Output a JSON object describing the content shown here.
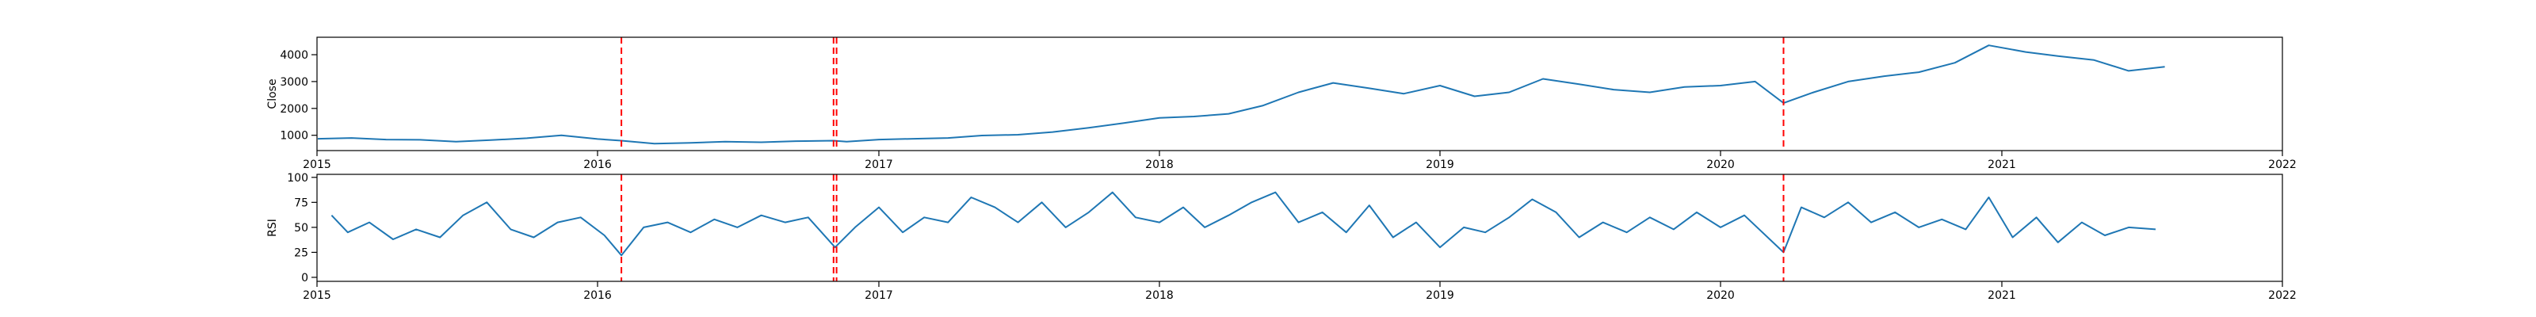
{
  "chart_data": [
    {
      "type": "line",
      "title": "",
      "xlabel": "",
      "ylabel": "Close",
      "x_ticks": [
        "2015",
        "2016",
        "2017",
        "2018",
        "2019",
        "2020",
        "2021",
        "2022"
      ],
      "xlim": [
        "2015-01-01",
        "2022-01-01"
      ],
      "y_ticks": [
        1000,
        2000,
        3000,
        4000
      ],
      "ylim": [
        430,
        4650
      ],
      "grid": false,
      "series": [
        {
          "color": "#1f77b4",
          "x": [
            "2015-01-02",
            "2015-02-15",
            "2015-04-01",
            "2015-05-15",
            "2015-07-01",
            "2015-08-15",
            "2015-10-01",
            "2015-11-15",
            "2016-01-01",
            "2016-02-01",
            "2016-03-15",
            "2016-05-01",
            "2016-06-15",
            "2016-08-01",
            "2016-09-15",
            "2016-11-03",
            "2016-11-20",
            "2017-01-01",
            "2017-02-15",
            "2017-04-01",
            "2017-05-15",
            "2017-07-01",
            "2017-08-15",
            "2017-10-01",
            "2017-11-15",
            "2018-01-01",
            "2018-02-15",
            "2018-04-01",
            "2018-05-15",
            "2018-07-01",
            "2018-08-15",
            "2018-10-01",
            "2018-11-15",
            "2019-01-01",
            "2019-02-15",
            "2019-04-01",
            "2019-05-15",
            "2019-07-01",
            "2019-08-15",
            "2019-10-01",
            "2019-11-15",
            "2020-01-01",
            "2020-02-15",
            "2020-03-23",
            "2020-05-01",
            "2020-06-15",
            "2020-08-01",
            "2020-09-15",
            "2020-11-01",
            "2020-12-15",
            "2021-02-01",
            "2021-03-15",
            "2021-05-01",
            "2021-06-15",
            "2021-08-01"
          ],
          "y": [
            870,
            900,
            840,
            830,
            760,
            820,
            890,
            1000,
            860,
            800,
            690,
            720,
            760,
            740,
            780,
            800,
            760,
            840,
            870,
            900,
            990,
            1020,
            1120,
            1280,
            1450,
            1650,
            1700,
            1800,
            2100,
            2600,
            2950,
            2750,
            2550,
            2850,
            2450,
            2600,
            3100,
            2900,
            2700,
            2600,
            2800,
            2850,
            3000,
            2200,
            2600,
            3000,
            3200,
            3350,
            3700,
            4350,
            4100,
            3950,
            3800,
            3400,
            3550
          ]
        }
      ],
      "annotations": [
        {
          "type": "vline",
          "x": "2016-02-01",
          "style": "dashed",
          "color": "#ff0000"
        },
        {
          "type": "vline",
          "x": "2016-11-03",
          "style": "dashed",
          "color": "#ff0000"
        },
        {
          "type": "vline",
          "x": "2016-11-07",
          "style": "dashed",
          "color": "#ff0000"
        },
        {
          "type": "vline",
          "x": "2020-03-23",
          "style": "dashed",
          "color": "#ff0000"
        }
      ]
    },
    {
      "type": "line",
      "title": "",
      "xlabel": "",
      "ylabel": "RSI",
      "x_ticks": [
        "2015",
        "2016",
        "2017",
        "2018",
        "2019",
        "2020",
        "2021",
        "2022"
      ],
      "xlim": [
        "2015-01-01",
        "2022-01-01"
      ],
      "y_ticks": [
        0,
        25,
        50,
        75,
        100
      ],
      "ylim": [
        -4,
        103
      ],
      "grid": false,
      "series": [
        {
          "color": "#1f77b4",
          "x": [
            "2015-01-20",
            "2015-02-10",
            "2015-03-10",
            "2015-04-10",
            "2015-05-10",
            "2015-06-10",
            "2015-07-10",
            "2015-08-10",
            "2015-09-10",
            "2015-10-10",
            "2015-11-10",
            "2015-12-10",
            "2016-01-10",
            "2016-02-01",
            "2016-03-01",
            "2016-04-01",
            "2016-05-01",
            "2016-06-01",
            "2016-07-01",
            "2016-08-01",
            "2016-09-01",
            "2016-10-01",
            "2016-11-05",
            "2016-12-01",
            "2017-01-01",
            "2017-02-01",
            "2017-03-01",
            "2017-04-01",
            "2017-05-01",
            "2017-06-01",
            "2017-07-01",
            "2017-08-01",
            "2017-09-01",
            "2017-10-01",
            "2017-11-01",
            "2017-12-01",
            "2018-01-01",
            "2018-02-01",
            "2018-03-01",
            "2018-04-01",
            "2018-05-01",
            "2018-06-01",
            "2018-07-01",
            "2018-08-01",
            "2018-09-01",
            "2018-10-01",
            "2018-11-01",
            "2018-12-01",
            "2019-01-01",
            "2019-02-01",
            "2019-03-01",
            "2019-04-01",
            "2019-05-01",
            "2019-06-01",
            "2019-07-01",
            "2019-08-01",
            "2019-09-01",
            "2019-10-01",
            "2019-11-01",
            "2019-12-01",
            "2020-01-01",
            "2020-02-01",
            "2020-03-23",
            "2020-04-15",
            "2020-05-15",
            "2020-06-15",
            "2020-07-15",
            "2020-08-15",
            "2020-09-15",
            "2020-10-15",
            "2020-11-15",
            "2020-12-15",
            "2021-01-15",
            "2021-02-15",
            "2021-03-15",
            "2021-04-15",
            "2021-05-15",
            "2021-06-15",
            "2021-07-20"
          ],
          "y": [
            62,
            45,
            55,
            38,
            48,
            40,
            62,
            75,
            48,
            40,
            55,
            60,
            42,
            22,
            50,
            55,
            45,
            58,
            50,
            62,
            55,
            60,
            30,
            50,
            70,
            45,
            60,
            55,
            80,
            70,
            55,
            75,
            50,
            65,
            85,
            60,
            55,
            70,
            50,
            62,
            75,
            85,
            55,
            65,
            45,
            72,
            40,
            55,
            30,
            50,
            45,
            60,
            78,
            65,
            40,
            55,
            45,
            60,
            48,
            65,
            50,
            62,
            25,
            70,
            60,
            75,
            55,
            65,
            50,
            58,
            48,
            80,
            40,
            60,
            35,
            55,
            42,
            50,
            48
          ]
        }
      ],
      "annotations": [
        {
          "type": "vline",
          "x": "2016-02-01",
          "style": "dashed",
          "color": "#ff0000"
        },
        {
          "type": "vline",
          "x": "2016-11-03",
          "style": "dashed",
          "color": "#ff0000"
        },
        {
          "type": "vline",
          "x": "2016-11-07",
          "style": "dashed",
          "color": "#ff0000"
        },
        {
          "type": "vline",
          "x": "2020-03-23",
          "style": "dashed",
          "color": "#ff0000"
        }
      ]
    }
  ]
}
